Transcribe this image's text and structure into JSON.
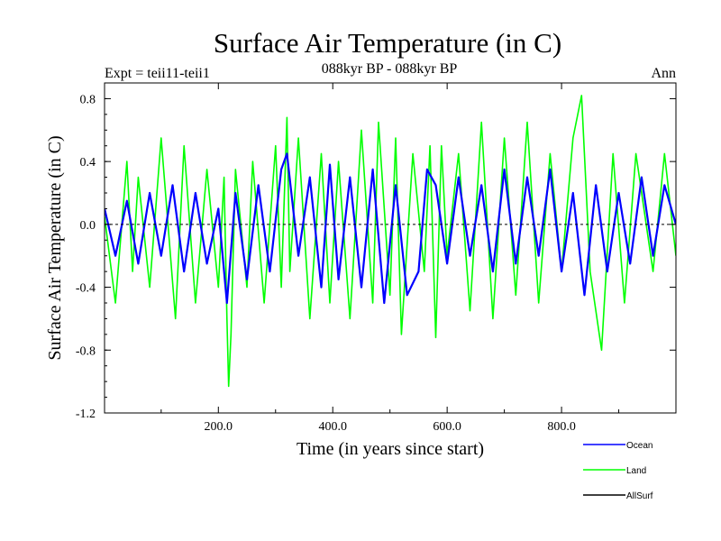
{
  "chart_data": {
    "type": "line",
    "title": "Surface Air Temperature (in C)",
    "subtitle": "088kyr BP - 088kyr BP",
    "left_label": "Expt = teii11-teii1",
    "right_label": "Ann",
    "xlabel": "Time (in years since start)",
    "ylabel": "Surface Air Temperature (in C)",
    "xlim": [
      1,
      1000
    ],
    "ylim": [
      -1.2,
      0.9
    ],
    "xticks": [
      200,
      400,
      600,
      800
    ],
    "xtick_labels": [
      "200.0",
      "400.0",
      "600.0",
      "800.0"
    ],
    "yticks": [
      0.8,
      0.4,
      0.0,
      -0.4,
      -0.8,
      -1.2
    ],
    "ytick_labels": [
      "0.8",
      "0.4",
      "0.0",
      "-0.4",
      "-0.8",
      "-1.2"
    ],
    "legend_position": "bottom-right, below plot",
    "series": [
      {
        "name": "Land",
        "color": "#00ff00",
        "x": [
          1,
          20,
          40,
          50,
          60,
          80,
          100,
          125,
          140,
          160,
          180,
          200,
          210,
          215,
          218,
          222,
          230,
          250,
          260,
          280,
          300,
          310,
          320,
          325,
          340,
          360,
          380,
          395,
          410,
          430,
          450,
          470,
          480,
          500,
          510,
          520,
          540,
          560,
          570,
          580,
          590,
          600,
          620,
          640,
          660,
          680,
          700,
          720,
          740,
          760,
          780,
          800,
          820,
          835,
          850,
          870,
          890,
          910,
          930,
          960,
          980,
          1000
        ],
        "values": [
          0.05,
          -0.5,
          0.4,
          -0.3,
          0.3,
          -0.4,
          0.55,
          -0.6,
          0.5,
          -0.5,
          0.35,
          -0.4,
          0.3,
          -0.6,
          -1.03,
          -0.7,
          0.35,
          -0.4,
          0.4,
          -0.5,
          0.5,
          -0.4,
          0.68,
          -0.3,
          0.55,
          -0.6,
          0.45,
          -0.5,
          0.4,
          -0.6,
          0.6,
          -0.5,
          0.65,
          -0.45,
          0.55,
          -0.7,
          0.45,
          -0.3,
          0.5,
          -0.72,
          0.5,
          -0.2,
          0.45,
          -0.55,
          0.65,
          -0.6,
          0.55,
          -0.45,
          0.65,
          -0.5,
          0.45,
          -0.3,
          0.55,
          0.82,
          -0.3,
          -0.8,
          0.45,
          -0.5,
          0.45,
          -0.3,
          0.45,
          -0.2
        ]
      },
      {
        "name": "Ocean",
        "color": "#0000ff",
        "x": [
          1,
          20,
          40,
          60,
          80,
          100,
          120,
          140,
          160,
          180,
          200,
          215,
          230,
          250,
          270,
          290,
          310,
          320,
          340,
          360,
          380,
          395,
          410,
          430,
          450,
          470,
          490,
          510,
          530,
          550,
          565,
          580,
          600,
          620,
          640,
          660,
          680,
          700,
          720,
          740,
          760,
          780,
          800,
          820,
          840,
          860,
          880,
          900,
          920,
          940,
          960,
          980,
          1000
        ],
        "values": [
          0.1,
          -0.2,
          0.15,
          -0.25,
          0.2,
          -0.2,
          0.25,
          -0.3,
          0.2,
          -0.25,
          0.1,
          -0.5,
          0.2,
          -0.35,
          0.25,
          -0.3,
          0.35,
          0.45,
          -0.2,
          0.3,
          -0.4,
          0.38,
          -0.35,
          0.3,
          -0.4,
          0.35,
          -0.5,
          0.25,
          -0.45,
          -0.3,
          0.35,
          0.25,
          -0.25,
          0.3,
          -0.2,
          0.25,
          -0.3,
          0.35,
          -0.25,
          0.3,
          -0.2,
          0.35,
          -0.3,
          0.2,
          -0.45,
          0.25,
          -0.3,
          0.2,
          -0.25,
          0.3,
          -0.2,
          0.25,
          0.0
        ]
      }
    ],
    "legend": [
      {
        "name": "Ocean",
        "color": "#0000ff"
      },
      {
        "name": "Land",
        "color": "#00ff00"
      },
      {
        "name": "AllSurf",
        "color": "#000000"
      }
    ]
  }
}
